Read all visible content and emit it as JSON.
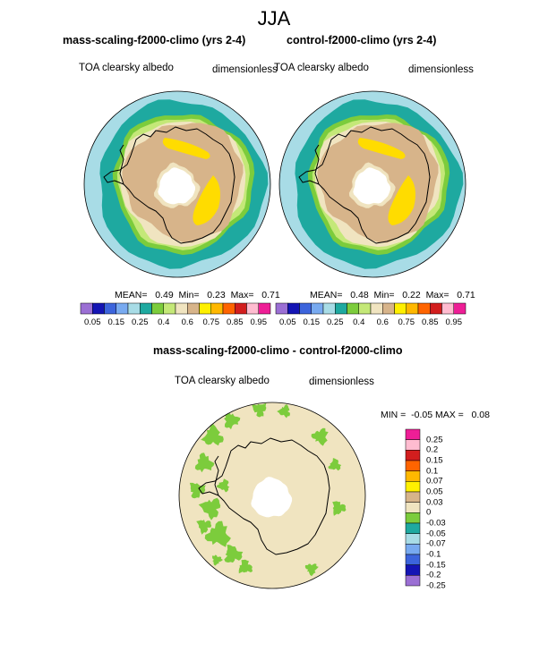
{
  "figure": {
    "title": "JJA"
  },
  "panels": [
    {
      "title": "mass-scaling-f2000-climo (yrs 2-4)",
      "left_label": "TOA clearsky albedo",
      "right_label": "dimensionless",
      "stats": "MEAN=   0.49  Min=   0.23  Max=   0.71"
    },
    {
      "title": "control-f2000-climo (yrs 2-4)",
      "left_label": "TOA clearsky albedo",
      "right_label": "dimensionless",
      "stats": "MEAN=   0.48  Min=   0.22  Max=   0.71"
    }
  ],
  "diff_panel": {
    "title": "mass-scaling-f2000-climo - control-f2000-climo",
    "left_label": "TOA clearsky albedo",
    "right_label": "dimensionless",
    "stats": "MIN =  -0.05 MAX =   0.08"
  },
  "colorbar_top": {
    "colors": [
      "#9b6fd4",
      "#1414b4",
      "#3c64dc",
      "#78aaf0",
      "#a8dce6",
      "#1ea9a0",
      "#7ccc3c",
      "#c4e878",
      "#f0e4c0",
      "#d7b48a",
      "#fff000",
      "#ffb800",
      "#ff6400",
      "#d21e1e",
      "#ffbcd0",
      "#ee1e96"
    ],
    "tick_labels": [
      "0.05",
      "0.15",
      "0.25",
      "0.4",
      "0.6",
      "0.75",
      "0.85",
      "0.95"
    ]
  },
  "colorbar_diff": {
    "colors": [
      "#ee1e96",
      "#ffbcd0",
      "#d21e1e",
      "#ff6400",
      "#ffb800",
      "#fff000",
      "#d7b48a",
      "#f0e4c0",
      "#7ccc3c",
      "#1ea9a0",
      "#a8dce6",
      "#78aaf0",
      "#3c64dc",
      "#1414b4",
      "#9b6fd4"
    ],
    "tick_labels": [
      "0.25",
      "0.2",
      "0.15",
      "0.1",
      "0.07",
      "0.05",
      "0.03",
      "0",
      "-0.03",
      "-0.05",
      "-0.07",
      "-0.1",
      "-0.15",
      "-0.2",
      "-0.25"
    ]
  },
  "map_colors": {
    "ocean_outer": "#1ea9a0",
    "ocean_light": "#a8dce6",
    "green": "#7ccc3c",
    "lightgreen": "#c4e878",
    "cream": "#f0e4c0",
    "tan": "#d7b48a",
    "yellow": "#ffdc00",
    "hole": "#ffffff",
    "coast": "#000000"
  }
}
